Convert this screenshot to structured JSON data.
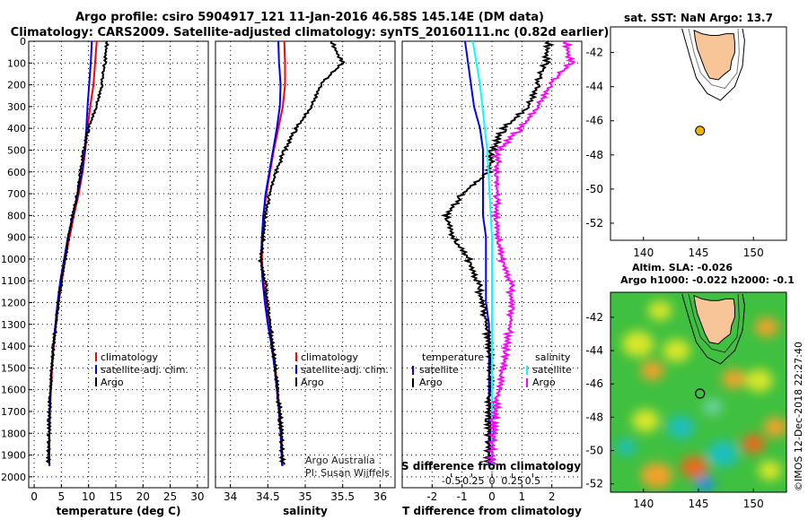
{
  "header": {
    "line1": "Argo profile: csiro 5904917_121 11-Jan-2016 46.58S 145.14E (DM data)",
    "line2": "Climatology: CARS2009. Satellite-adjusted climatology: synTS_20160111.nc (0.82d earlier)"
  },
  "credit": {
    "line1": "Argo Australia",
    "line2": "PI: Susan Wijffels"
  },
  "watermark": "©IMOS 12-Dec-2018 22:27:40",
  "colors": {
    "climatology": "#ff0000",
    "satellite": "#0000ff",
    "argo": "#000000",
    "sat_salinity": "#00ffff",
    "clim_salinity": "#ff00ff",
    "land": "#f7c597",
    "float_marker": "#f0b400"
  },
  "chart_data": [
    {
      "type": "line",
      "name": "temperature",
      "xlabel": "temperature (deg C)",
      "xlim": [
        -1,
        32
      ],
      "ylim": [
        2050,
        0
      ],
      "xticks": [
        0,
        5,
        10,
        15,
        20,
        25,
        30
      ],
      "yticks": [
        0,
        100,
        200,
        300,
        400,
        500,
        600,
        700,
        800,
        900,
        1000,
        1100,
        1200,
        1300,
        1400,
        1500,
        1600,
        1700,
        1800,
        1900,
        2000
      ],
      "legend": [
        "climatology",
        "satellite-adj. clim.",
        "Argo"
      ],
      "series": [
        {
          "name": "climatology",
          "color_key": "climatology",
          "x": [
            11.5,
            11.2,
            10.9,
            10.3,
            9.8,
            9.4,
            8.9,
            8.2,
            7.3,
            6.5,
            5.7,
            5.1,
            4.5,
            4.0,
            3.6,
            3.3,
            3.1,
            2.9,
            2.8,
            2.8
          ],
          "y": [
            0,
            100,
            200,
            300,
            400,
            500,
            600,
            700,
            800,
            900,
            1000,
            1100,
            1200,
            1300,
            1400,
            1500,
            1600,
            1700,
            1800,
            1950
          ]
        },
        {
          "name": "satellite-adj. clim.",
          "color_key": "satellite",
          "x": [
            10.6,
            10.4,
            10.1,
            9.8,
            9.6,
            9.3,
            8.8,
            8.0,
            7.1,
            6.2,
            5.5,
            4.8,
            4.3,
            3.9,
            3.5,
            3.2,
            3.0,
            2.9,
            2.8,
            2.8
          ],
          "y": [
            0,
            100,
            200,
            300,
            400,
            500,
            600,
            700,
            800,
            900,
            1000,
            1100,
            1200,
            1300,
            1400,
            1500,
            1600,
            1700,
            1800,
            1950
          ]
        },
        {
          "name": "Argo",
          "color_key": "argo",
          "x": [
            13.4,
            13.0,
            12.4,
            11.4,
            10.0,
            9.1,
            8.5,
            7.9,
            7.1,
            6.3,
            5.7,
            5.0,
            4.5,
            4.0,
            3.5,
            3.2,
            3.0,
            2.8,
            2.7,
            2.6
          ],
          "y": [
            0,
            100,
            200,
            300,
            400,
            500,
            600,
            700,
            800,
            900,
            1000,
            1100,
            1200,
            1300,
            1400,
            1500,
            1600,
            1700,
            1800,
            1950
          ]
        }
      ]
    },
    {
      "type": "line",
      "name": "salinity",
      "xlabel": "salinity",
      "xlim": [
        33.8,
        36.2
      ],
      "ylim": [
        2050,
        0
      ],
      "xticks": [
        34,
        34.5,
        35,
        35.5,
        36
      ],
      "legend": [
        "climatology",
        "satellite-adj. clim.",
        "Argo"
      ],
      "series": [
        {
          "name": "climatology",
          "color_key": "climatology",
          "x": [
            34.72,
            34.73,
            34.73,
            34.7,
            34.64,
            34.58,
            34.53,
            34.48,
            34.44,
            34.43,
            34.42,
            34.44,
            34.48,
            34.52,
            34.56,
            34.6,
            34.63,
            34.66,
            34.68,
            34.7
          ],
          "y": [
            0,
            100,
            200,
            300,
            400,
            500,
            600,
            700,
            800,
            900,
            1000,
            1100,
            1200,
            1300,
            1400,
            1500,
            1600,
            1700,
            1800,
            1950
          ]
        },
        {
          "name": "satellite-adj. clim.",
          "color_key": "satellite",
          "x": [
            34.64,
            34.65,
            34.67,
            34.66,
            34.62,
            34.57,
            34.52,
            34.47,
            34.44,
            34.42,
            34.41,
            34.43,
            34.46,
            34.5,
            34.55,
            34.59,
            34.62,
            34.65,
            34.67,
            34.69
          ],
          "y": [
            0,
            100,
            200,
            300,
            400,
            500,
            600,
            700,
            800,
            900,
            1000,
            1100,
            1200,
            1300,
            1400,
            1500,
            1600,
            1700,
            1800,
            1950
          ]
        },
        {
          "name": "Argo",
          "color_key": "argo",
          "x": [
            35.35,
            35.5,
            35.2,
            35.08,
            34.88,
            34.72,
            34.61,
            34.52,
            34.47,
            34.44,
            34.4,
            34.46,
            34.5,
            34.53,
            34.56,
            34.6,
            34.63,
            34.66,
            34.68,
            34.7
          ],
          "y": [
            0,
            100,
            200,
            300,
            400,
            500,
            600,
            700,
            800,
            900,
            1000,
            1100,
            1200,
            1300,
            1400,
            1500,
            1600,
            1700,
            1800,
            1950
          ]
        }
      ]
    },
    {
      "type": "line",
      "name": "differences",
      "xlabel": "T difference from climatology",
      "xlabel2": "S difference from climatology",
      "xlim": [
        -3,
        3
      ],
      "ylim": [
        2050,
        0
      ],
      "xticks": [
        -2,
        -1,
        0,
        1,
        2
      ],
      "xticks2": [
        "-0.5",
        "-0.25",
        "0",
        "0.25",
        "0.5"
      ],
      "legend_temperature_title": "temperature",
      "legend_salinity_title": "salinity",
      "legend_temperature": [
        "satellite",
        "Argo"
      ],
      "legend_salinity": [
        "satellite",
        "Argo"
      ],
      "series": [
        {
          "name": "T satellite",
          "color_key": "satellite",
          "x": [
            -0.9,
            -0.8,
            -0.7,
            -0.6,
            -0.4,
            -0.3,
            -0.3,
            -0.3,
            -0.3,
            -0.2,
            -0.2,
            -0.2,
            -0.2,
            -0.1,
            -0.1,
            -0.1,
            -0.1,
            -0.1,
            -0.1,
            -0.1
          ],
          "y": [
            0,
            100,
            200,
            300,
            400,
            500,
            600,
            700,
            800,
            900,
            1000,
            1100,
            1200,
            1300,
            1400,
            1500,
            1600,
            1700,
            1800,
            1950
          ]
        },
        {
          "name": "T Argo",
          "color_key": "argo",
          "x": [
            1.9,
            1.8,
            1.5,
            1.2,
            0.4,
            0.0,
            -0.1,
            -1.0,
            -1.5,
            -1.3,
            -0.8,
            -0.5,
            -0.3,
            -0.2,
            -0.1,
            -0.05,
            -0.05,
            -0.1,
            -0.1,
            -0.1
          ],
          "y": [
            0,
            100,
            200,
            300,
            400,
            500,
            600,
            700,
            800,
            900,
            1000,
            1100,
            1200,
            1300,
            1400,
            1500,
            1600,
            1700,
            1800,
            1950
          ]
        },
        {
          "name": "S satellite",
          "color_key": "sat_salinity",
          "x": [
            -0.16,
            -0.13,
            -0.1,
            -0.08,
            -0.06,
            -0.04,
            -0.03,
            -0.02,
            -0.01,
            0.0,
            0.0,
            0.0,
            0.0,
            0.0,
            0.0,
            0.0,
            0.0,
            0.0,
            0.0,
            0.0
          ],
          "y": [
            0,
            100,
            200,
            300,
            400,
            500,
            600,
            700,
            800,
            900,
            1000,
            1100,
            1200,
            1300,
            1400,
            1500,
            1600,
            1700,
            1800,
            1950
          ]
        },
        {
          "name": "S Argo",
          "color_key": "clim_salinity",
          "x": [
            0.62,
            0.66,
            0.48,
            0.38,
            0.24,
            0.05,
            0.04,
            0.04,
            0.04,
            0.05,
            0.08,
            0.15,
            0.17,
            0.15,
            0.12,
            0.09,
            0.06,
            0.03,
            0.01,
            0.0
          ],
          "y": [
            0,
            100,
            200,
            300,
            400,
            500,
            600,
            700,
            800,
            900,
            1000,
            1100,
            1200,
            1300,
            1400,
            1500,
            1600,
            1700,
            1800,
            1950
          ]
        }
      ]
    },
    {
      "type": "map",
      "name": "sst-map",
      "title": "sat. SST: NaN Argo: 13.7",
      "lon_range": [
        137,
        153
      ],
      "lat_range": [
        -53,
        -40.5
      ],
      "xticks": [
        140,
        145,
        150
      ],
      "yticks": [
        -42,
        -44,
        -46,
        -48,
        -50,
        -52
      ],
      "float_position": {
        "lon": 145.14,
        "lat": -46.58
      }
    },
    {
      "type": "heatmap",
      "name": "sla-map",
      "title_line1": "Altim. SLA: -0.026",
      "title_line2": "Argo h1000: -0.022 h2000: -0.1",
      "lon_range": [
        137,
        153
      ],
      "lat_range": [
        -52.5,
        -40.5
      ],
      "xticks": [
        140,
        145,
        150
      ],
      "yticks": [
        -42,
        -44,
        -46,
        -48,
        -50,
        -52
      ],
      "float_position": {
        "lon": 145.14,
        "lat": -46.58
      }
    }
  ]
}
